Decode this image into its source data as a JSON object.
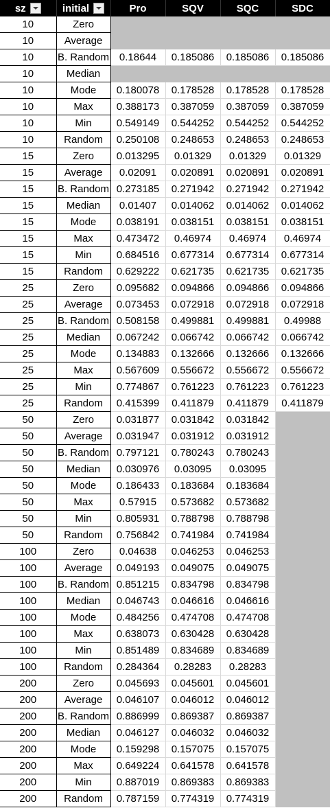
{
  "columns": [
    "sz",
    "initial",
    "Pro",
    "SQV",
    "SQC",
    "SDC"
  ],
  "rows": [
    {
      "sz": "10",
      "initial": "Zero",
      "pro": "",
      "sqv": "",
      "sqc": "",
      "sdc": ""
    },
    {
      "sz": "10",
      "initial": "Average",
      "pro": "",
      "sqv": "",
      "sqc": "",
      "sdc": ""
    },
    {
      "sz": "10",
      "initial": "B. Random",
      "pro": "0.18644",
      "sqv": "0.185086",
      "sqc": "0.185086",
      "sdc": "0.185086"
    },
    {
      "sz": "10",
      "initial": "Median",
      "pro": "",
      "sqv": "",
      "sqc": "",
      "sdc": ""
    },
    {
      "sz": "10",
      "initial": "Mode",
      "pro": "0.180078",
      "sqv": "0.178528",
      "sqc": "0.178528",
      "sdc": "0.178528"
    },
    {
      "sz": "10",
      "initial": "Max",
      "pro": "0.388173",
      "sqv": "0.387059",
      "sqc": "0.387059",
      "sdc": "0.387059"
    },
    {
      "sz": "10",
      "initial": "Min",
      "pro": "0.549149",
      "sqv": "0.544252",
      "sqc": "0.544252",
      "sdc": "0.544252"
    },
    {
      "sz": "10",
      "initial": "Random",
      "pro": "0.250108",
      "sqv": "0.248653",
      "sqc": "0.248653",
      "sdc": "0.248653"
    },
    {
      "sz": "15",
      "initial": "Zero",
      "pro": "0.013295",
      "sqv": "0.01329",
      "sqc": "0.01329",
      "sdc": "0.01329"
    },
    {
      "sz": "15",
      "initial": "Average",
      "pro": "0.02091",
      "sqv": "0.020891",
      "sqc": "0.020891",
      "sdc": "0.020891"
    },
    {
      "sz": "15",
      "initial": "B. Random",
      "pro": "0.273185",
      "sqv": "0.271942",
      "sqc": "0.271942",
      "sdc": "0.271942"
    },
    {
      "sz": "15",
      "initial": "Median",
      "pro": "0.01407",
      "sqv": "0.014062",
      "sqc": "0.014062",
      "sdc": "0.014062"
    },
    {
      "sz": "15",
      "initial": "Mode",
      "pro": "0.038191",
      "sqv": "0.038151",
      "sqc": "0.038151",
      "sdc": "0.038151"
    },
    {
      "sz": "15",
      "initial": "Max",
      "pro": "0.473472",
      "sqv": "0.46974",
      "sqc": "0.46974",
      "sdc": "0.46974"
    },
    {
      "sz": "15",
      "initial": "Min",
      "pro": "0.684516",
      "sqv": "0.677314",
      "sqc": "0.677314",
      "sdc": "0.677314"
    },
    {
      "sz": "15",
      "initial": "Random",
      "pro": "0.629222",
      "sqv": "0.621735",
      "sqc": "0.621735",
      "sdc": "0.621735"
    },
    {
      "sz": "25",
      "initial": "Zero",
      "pro": "0.095682",
      "sqv": "0.094866",
      "sqc": "0.094866",
      "sdc": "0.094866"
    },
    {
      "sz": "25",
      "initial": "Average",
      "pro": "0.073453",
      "sqv": "0.072918",
      "sqc": "0.072918",
      "sdc": "0.072918"
    },
    {
      "sz": "25",
      "initial": "B. Random",
      "pro": "0.508158",
      "sqv": "0.499881",
      "sqc": "0.499881",
      "sdc": "0.49988"
    },
    {
      "sz": "25",
      "initial": "Median",
      "pro": "0.067242",
      "sqv": "0.066742",
      "sqc": "0.066742",
      "sdc": "0.066742"
    },
    {
      "sz": "25",
      "initial": "Mode",
      "pro": "0.134883",
      "sqv": "0.132666",
      "sqc": "0.132666",
      "sdc": "0.132666"
    },
    {
      "sz": "25",
      "initial": "Max",
      "pro": "0.567609",
      "sqv": "0.556672",
      "sqc": "0.556672",
      "sdc": "0.556672"
    },
    {
      "sz": "25",
      "initial": "Min",
      "pro": "0.774867",
      "sqv": "0.761223",
      "sqc": "0.761223",
      "sdc": "0.761223"
    },
    {
      "sz": "25",
      "initial": "Random",
      "pro": "0.415399",
      "sqv": "0.411879",
      "sqc": "0.411879",
      "sdc": "0.411879"
    },
    {
      "sz": "50",
      "initial": "Zero",
      "pro": "0.031877",
      "sqv": "0.031842",
      "sqc": "0.031842",
      "sdc": ""
    },
    {
      "sz": "50",
      "initial": "Average",
      "pro": "0.031947",
      "sqv": "0.031912",
      "sqc": "0.031912",
      "sdc": ""
    },
    {
      "sz": "50",
      "initial": "B. Random",
      "pro": "0.797121",
      "sqv": "0.780243",
      "sqc": "0.780243",
      "sdc": ""
    },
    {
      "sz": "50",
      "initial": "Median",
      "pro": "0.030976",
      "sqv": "0.03095",
      "sqc": "0.03095",
      "sdc": ""
    },
    {
      "sz": "50",
      "initial": "Mode",
      "pro": "0.186433",
      "sqv": "0.183684",
      "sqc": "0.183684",
      "sdc": ""
    },
    {
      "sz": "50",
      "initial": "Max",
      "pro": "0.57915",
      "sqv": "0.573682",
      "sqc": "0.573682",
      "sdc": ""
    },
    {
      "sz": "50",
      "initial": "Min",
      "pro": "0.805931",
      "sqv": "0.788798",
      "sqc": "0.788798",
      "sdc": ""
    },
    {
      "sz": "50",
      "initial": "Random",
      "pro": "0.756842",
      "sqv": "0.741984",
      "sqc": "0.741984",
      "sdc": ""
    },
    {
      "sz": "100",
      "initial": "Zero",
      "pro": "0.04638",
      "sqv": "0.046253",
      "sqc": "0.046253",
      "sdc": ""
    },
    {
      "sz": "100",
      "initial": "Average",
      "pro": "0.049193",
      "sqv": "0.049075",
      "sqc": "0.049075",
      "sdc": ""
    },
    {
      "sz": "100",
      "initial": "B. Random",
      "pro": "0.851215",
      "sqv": "0.834798",
      "sqc": "0.834798",
      "sdc": ""
    },
    {
      "sz": "100",
      "initial": "Median",
      "pro": "0.046743",
      "sqv": "0.046616",
      "sqc": "0.046616",
      "sdc": ""
    },
    {
      "sz": "100",
      "initial": "Mode",
      "pro": "0.484256",
      "sqv": "0.474708",
      "sqc": "0.474708",
      "sdc": ""
    },
    {
      "sz": "100",
      "initial": "Max",
      "pro": "0.638073",
      "sqv": "0.630428",
      "sqc": "0.630428",
      "sdc": ""
    },
    {
      "sz": "100",
      "initial": "Min",
      "pro": "0.851489",
      "sqv": "0.834689",
      "sqc": "0.834689",
      "sdc": ""
    },
    {
      "sz": "100",
      "initial": "Random",
      "pro": "0.284364",
      "sqv": "0.28283",
      "sqc": "0.28283",
      "sdc": ""
    },
    {
      "sz": "200",
      "initial": "Zero",
      "pro": "0.045693",
      "sqv": "0.045601",
      "sqc": "0.045601",
      "sdc": ""
    },
    {
      "sz": "200",
      "initial": "Average",
      "pro": "0.046107",
      "sqv": "0.046012",
      "sqc": "0.046012",
      "sdc": ""
    },
    {
      "sz": "200",
      "initial": "B. Random",
      "pro": "0.886999",
      "sqv": "0.869387",
      "sqc": "0.869387",
      "sdc": ""
    },
    {
      "sz": "200",
      "initial": "Median",
      "pro": "0.046127",
      "sqv": "0.046032",
      "sqc": "0.046032",
      "sdc": ""
    },
    {
      "sz": "200",
      "initial": "Mode",
      "pro": "0.159298",
      "sqv": "0.157075",
      "sqc": "0.157075",
      "sdc": ""
    },
    {
      "sz": "200",
      "initial": "Max",
      "pro": "0.649224",
      "sqv": "0.641578",
      "sqc": "0.641578",
      "sdc": ""
    },
    {
      "sz": "200",
      "initial": "Min",
      "pro": "0.887019",
      "sqv": "0.869383",
      "sqc": "0.869383",
      "sdc": ""
    },
    {
      "sz": "200",
      "initial": "Random",
      "pro": "0.787159",
      "sqv": "0.774319",
      "sqc": "0.774319",
      "sdc": ""
    }
  ]
}
